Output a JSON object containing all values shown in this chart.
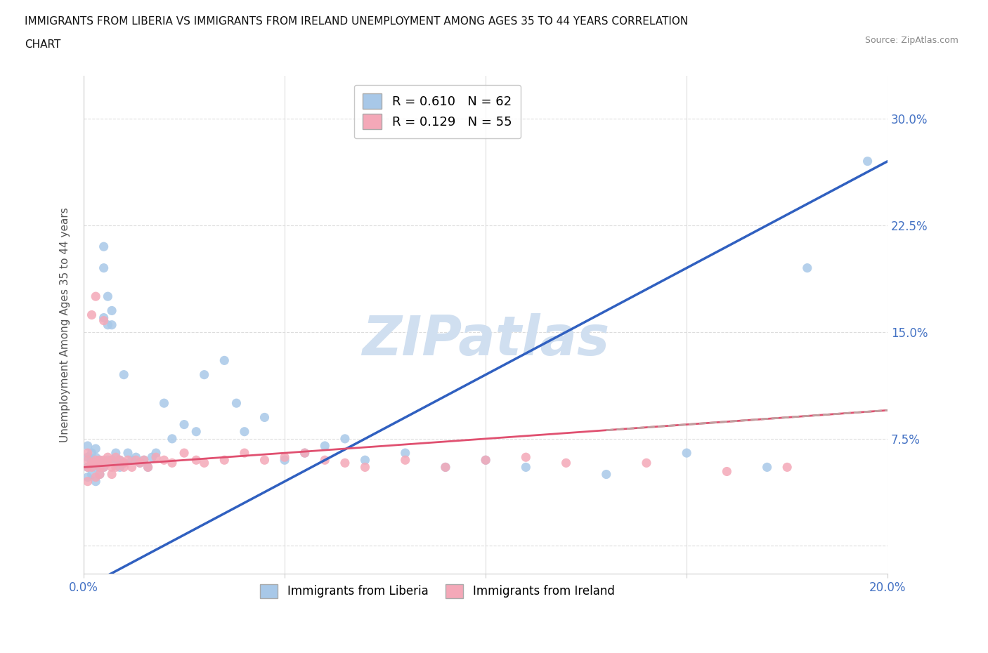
{
  "title_line1": "IMMIGRANTS FROM LIBERIA VS IMMIGRANTS FROM IRELAND UNEMPLOYMENT AMONG AGES 35 TO 44 YEARS CORRELATION",
  "title_line2": "CHART",
  "source_text": "Source: ZipAtlas.com",
  "ylabel_label": "Unemployment Among Ages 35 to 44 years",
  "liberia_R": 0.61,
  "liberia_N": 62,
  "ireland_R": 0.129,
  "ireland_N": 55,
  "liberia_color": "#A8C8E8",
  "ireland_color": "#F4A8B8",
  "liberia_line_color": "#3060C0",
  "ireland_line_color": "#E05070",
  "ireland_dash_color": "#C0A0A0",
  "watermark_color": "#D0DFF0",
  "xlim": [
    0.0,
    0.2
  ],
  "ylim": [
    -0.02,
    0.33
  ],
  "figsize": [
    14.06,
    9.3
  ],
  "dpi": 100,
  "liberia_x": [
    0.001,
    0.001,
    0.001,
    0.001,
    0.002,
    0.002,
    0.002,
    0.002,
    0.003,
    0.003,
    0.003,
    0.003,
    0.004,
    0.004,
    0.004,
    0.005,
    0.005,
    0.005,
    0.005,
    0.006,
    0.006,
    0.006,
    0.007,
    0.007,
    0.007,
    0.008,
    0.008,
    0.009,
    0.009,
    0.01,
    0.01,
    0.011,
    0.012,
    0.013,
    0.014,
    0.015,
    0.016,
    0.017,
    0.018,
    0.02,
    0.022,
    0.025,
    0.028,
    0.03,
    0.035,
    0.038,
    0.04,
    0.045,
    0.05,
    0.055,
    0.06,
    0.065,
    0.07,
    0.08,
    0.09,
    0.1,
    0.11,
    0.13,
    0.15,
    0.17,
    0.18,
    0.195
  ],
  "liberia_y": [
    0.062,
    0.055,
    0.07,
    0.048,
    0.065,
    0.058,
    0.06,
    0.05,
    0.068,
    0.055,
    0.062,
    0.045,
    0.06,
    0.055,
    0.05,
    0.21,
    0.195,
    0.16,
    0.055,
    0.175,
    0.155,
    0.06,
    0.165,
    0.155,
    0.06,
    0.065,
    0.058,
    0.06,
    0.055,
    0.12,
    0.058,
    0.065,
    0.06,
    0.062,
    0.058,
    0.06,
    0.055,
    0.062,
    0.065,
    0.1,
    0.075,
    0.085,
    0.08,
    0.12,
    0.13,
    0.1,
    0.08,
    0.09,
    0.06,
    0.065,
    0.07,
    0.075,
    0.06,
    0.065,
    0.055,
    0.06,
    0.055,
    0.05,
    0.065,
    0.055,
    0.195,
    0.27
  ],
  "ireland_x": [
    0.001,
    0.001,
    0.001,
    0.001,
    0.002,
    0.002,
    0.002,
    0.003,
    0.003,
    0.003,
    0.003,
    0.004,
    0.004,
    0.004,
    0.005,
    0.005,
    0.005,
    0.006,
    0.006,
    0.007,
    0.007,
    0.007,
    0.008,
    0.008,
    0.009,
    0.01,
    0.01,
    0.011,
    0.012,
    0.013,
    0.014,
    0.015,
    0.016,
    0.018,
    0.02,
    0.022,
    0.025,
    0.028,
    0.03,
    0.035,
    0.04,
    0.045,
    0.05,
    0.055,
    0.06,
    0.065,
    0.07,
    0.08,
    0.09,
    0.1,
    0.11,
    0.12,
    0.14,
    0.16,
    0.175
  ],
  "ireland_y": [
    0.06,
    0.055,
    0.065,
    0.045,
    0.058,
    0.162,
    0.055,
    0.06,
    0.058,
    0.048,
    0.175,
    0.055,
    0.06,
    0.05,
    0.158,
    0.06,
    0.055,
    0.062,
    0.058,
    0.055,
    0.06,
    0.05,
    0.062,
    0.055,
    0.06,
    0.055,
    0.058,
    0.06,
    0.055,
    0.06,
    0.058,
    0.06,
    0.055,
    0.062,
    0.06,
    0.058,
    0.065,
    0.06,
    0.058,
    0.06,
    0.065,
    0.06,
    0.062,
    0.065,
    0.06,
    0.058,
    0.055,
    0.06,
    0.055,
    0.06,
    0.062,
    0.058,
    0.058,
    0.052,
    0.055
  ]
}
